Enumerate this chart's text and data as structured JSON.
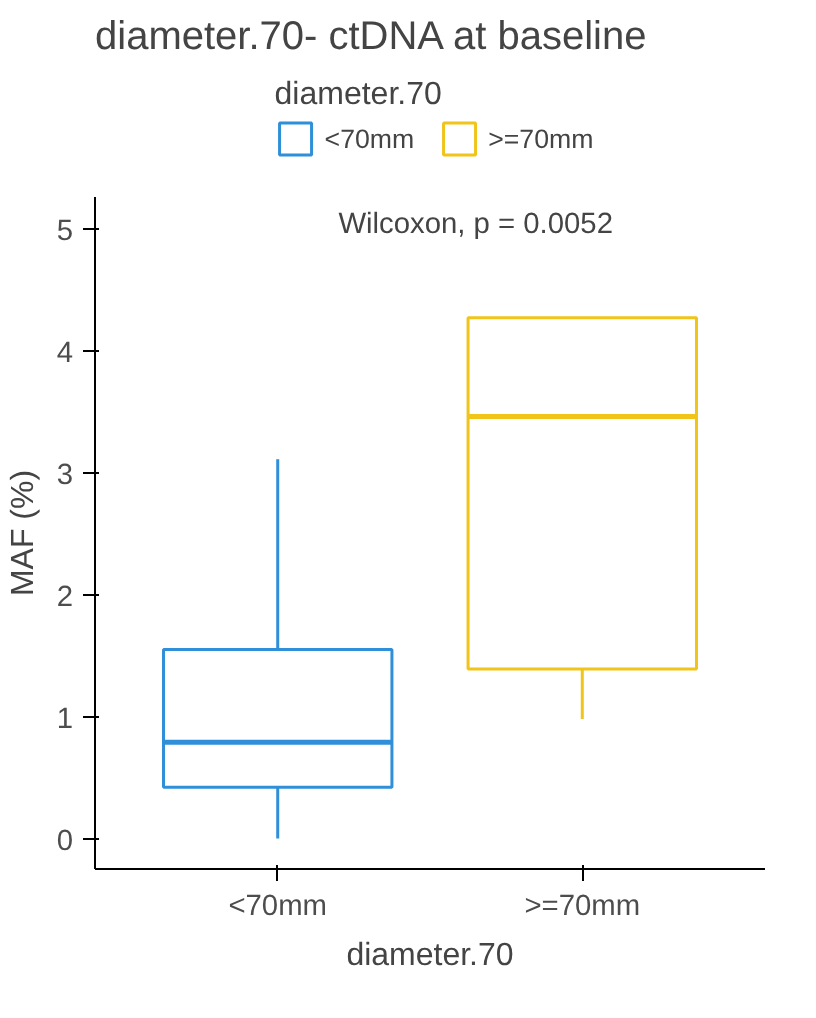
{
  "chart_data": {
    "type": "box",
    "title": "diameter.70- ctDNA at baseline",
    "xlabel": "diameter.70",
    "ylabel": "MAF (%)",
    "legend_title": "diameter.70",
    "categories": [
      "<70mm",
      ">=70mm"
    ],
    "series": [
      {
        "name": "<70mm",
        "color": "#2f8fd8",
        "boxes": [
          {
            "low": 0,
            "q1": 0.42,
            "median": 0.79,
            "q3": 1.55,
            "high": 3.11
          },
          null
        ]
      },
      {
        "name": ">=70mm",
        "color": "#f0c419",
        "boxes": [
          null,
          {
            "low": 0.98,
            "q1": 1.39,
            "median": 3.46,
            "q3": 4.27,
            "high": 4.27
          }
        ]
      }
    ],
    "ylim": [
      -0.25,
      5.26
    ],
    "yticks": [
      0,
      1,
      2,
      3,
      4,
      5
    ],
    "grid": false,
    "legend": "top",
    "annotations": [
      "Wilcoxon, p = 0.0052"
    ]
  }
}
